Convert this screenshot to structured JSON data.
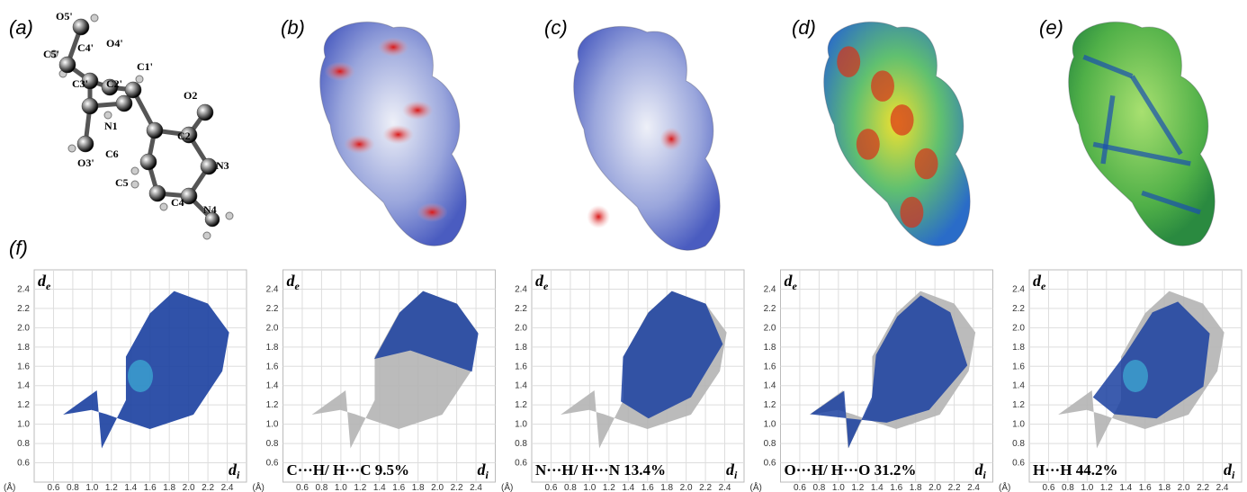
{
  "panel_labels": [
    "(a)",
    "(b)",
    "(c)",
    "(d)",
    "(e)",
    "(f)"
  ],
  "molecule": {
    "atom_labels": [
      "O5'",
      "C5'",
      "C4'",
      "O4'",
      "C1'",
      "C3'",
      "C2'",
      "O2",
      "N1",
      "C2",
      "C6",
      "N3",
      "O3'",
      "C5",
      "C4",
      "N4"
    ]
  },
  "fingerprint_axes": {
    "y_label": "d",
    "y_label_subscript": "e",
    "x_label": "d",
    "x_label_subscript": "i",
    "unit": "(Å)",
    "xlim": [
      0.4,
      2.6
    ],
    "ylim": [
      0.4,
      2.6
    ],
    "xticks": [
      0.6,
      0.8,
      {
        "value": 1,
        "label": "1.0"
      },
      1.2,
      1.4,
      1.6,
      1.8,
      {
        "value": 2,
        "label": "2.0"
      },
      2.2,
      2.4
    ],
    "yticks": [
      0.6,
      0.8,
      {
        "value": 1,
        "label": "1.0"
      },
      1.2,
      1.4,
      1.6,
      1.8,
      {
        "value": 2,
        "label": "2.0"
      },
      2.2,
      2.4
    ]
  },
  "fingerprint_captions": [
    "C···H/ H···C 9.5%",
    "N···H/ H···N 13.4%",
    "O···H/ H···O 31.2%",
    "H···H 44.2%"
  ]
}
